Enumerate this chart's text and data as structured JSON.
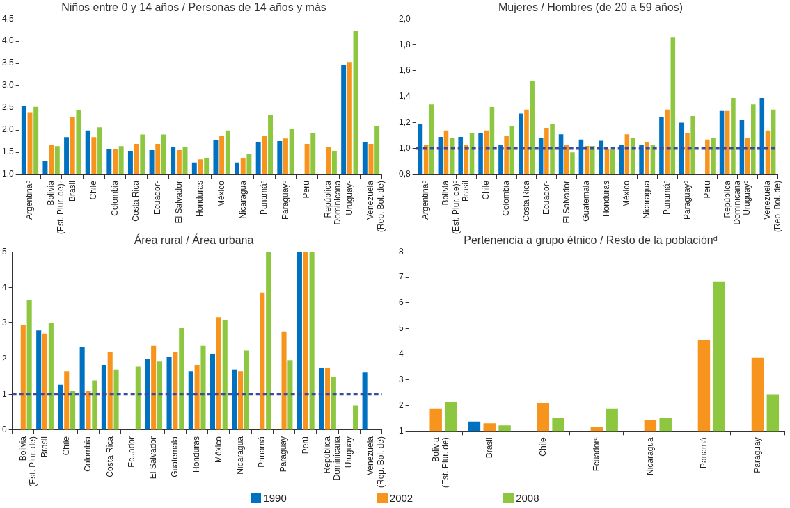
{
  "chart_data": [
    {
      "type": "bar",
      "title": "Niños entre 0 y 14 años / Personas de 14 años y más",
      "categories": [
        "Argentinaᵇ",
        "Bolivia\n(Est. Plur. de)ᶜ",
        "Brasil",
        "Chile",
        "Colombia",
        "Costa Rica",
        "Ecuadorᶜ",
        "El Salvador",
        "Honduras",
        "México",
        "Nicaragua",
        "Panamáᶜ",
        "Paraguayᵇ",
        "Perú",
        "República\nDominicana",
        "Uruguayᶜ",
        "Venezuela\n(Rep. Bol. de)"
      ],
      "series": [
        {
          "name": "1990",
          "color": "#0070c0",
          "values": [
            2.55,
            1.3,
            1.84,
            1.99,
            1.58,
            1.52,
            1.55,
            1.61,
            1.27,
            1.78,
            1.27,
            1.72,
            1.75,
            null,
            null,
            3.47,
            1.72
          ]
        },
        {
          "name": "2002",
          "color": "#f7941d",
          "values": [
            2.4,
            1.67,
            2.3,
            1.84,
            1.58,
            1.69,
            1.69,
            1.55,
            1.34,
            1.87,
            1.36,
            1.87,
            1.81,
            1.69,
            1.61,
            3.53,
            1.69
          ]
        },
        {
          "name": "2008",
          "color": "#8dc63f",
          "values": [
            2.52,
            1.64,
            2.45,
            2.06,
            1.64,
            1.9,
            1.9,
            1.61,
            1.36,
            1.99,
            1.46,
            2.34,
            2.03,
            1.94,
            1.52,
            4.22,
            2.09
          ]
        }
      ],
      "legend": "bottom",
      "ylim": [
        1.0,
        4.5
      ],
      "yticks": [
        {
          "value": 1.0,
          "label": "1,0"
        },
        {
          "value": 1.5,
          "label": "1,5"
        },
        {
          "value": 2.0,
          "label": "2,0"
        },
        {
          "value": 2.5,
          "label": "2,5"
        },
        {
          "value": 3.0,
          "label": "3,0"
        },
        {
          "value": 3.5,
          "label": "3,5"
        },
        {
          "value": 4.0,
          "label": "4,0"
        },
        {
          "value": 4.5,
          "label": "4,5"
        }
      ],
      "grid": false
    },
    {
      "type": "bar",
      "title": "Mujeres / Hombres (de 20 a 59 años)",
      "categories": [
        "Argentinaᵇ",
        "Bolivia\n(Est. Plur. de)ᶜ",
        "Brasil",
        "Chile",
        "Colombia",
        "Costa Rica",
        "Ecuadorᶜ",
        "El Salvador",
        "Guatemala",
        "Honduras",
        "México",
        "Nicaragua",
        "Panamáᶜ",
        "Paraguayᵇ",
        "Perú",
        "República\nDominicana",
        "Uruguayᶜ",
        "Venezuela\n(Rep. Bol. de)"
      ],
      "series": [
        {
          "name": "1990",
          "color": "#0070c0",
          "values": [
            1.19,
            1.09,
            1.09,
            1.12,
            1.03,
            1.27,
            1.08,
            1.11,
            1.07,
            1.06,
            1.03,
            1.03,
            1.24,
            1.2,
            null,
            1.29,
            1.22,
            1.39
          ]
        },
        {
          "name": "2002",
          "color": "#f7941d",
          "values": [
            1.03,
            1.14,
            1.03,
            1.14,
            1.1,
            1.3,
            1.16,
            1.03,
            1.02,
            1.0,
            1.11,
            1.05,
            1.3,
            1.12,
            1.07,
            1.29,
            1.08,
            1.14
          ]
        },
        {
          "name": "2008",
          "color": "#8dc63f",
          "values": [
            1.34,
            1.08,
            1.12,
            1.32,
            1.17,
            1.52,
            1.19,
            0.97,
            1.02,
            0.99,
            1.08,
            1.03,
            1.86,
            1.25,
            1.08,
            1.39,
            1.34,
            1.3
          ]
        }
      ],
      "ylim": [
        0.8,
        2.0
      ],
      "yticks": [
        {
          "value": 0.8,
          "label": "0,8"
        },
        {
          "value": 1.0,
          "label": "1,0"
        },
        {
          "value": 1.2,
          "label": "1,2"
        },
        {
          "value": 1.4,
          "label": "1,4"
        },
        {
          "value": 1.6,
          "label": "1,6"
        },
        {
          "value": 1.8,
          "label": "1,8"
        },
        {
          "value": 2.0,
          "label": "2,0"
        }
      ],
      "ref_lines": [
        {
          "axis": "y",
          "value": 1.0,
          "color": "#3b4ba0",
          "line_style": "dashed"
        }
      ],
      "grid": false
    },
    {
      "type": "bar",
      "title": "Área rural / Área urbana",
      "categories": [
        "Bolivia\n(Est. Plur. de)",
        "Brasil",
        "Chile",
        "Colombia",
        "Costa Rica",
        "Ecuador",
        "El Salvador",
        "Guatemala",
        "Honduras",
        "México",
        "Nicaragua",
        "Panamá",
        "Paraguay",
        "Perú",
        "República\nDominicana",
        "Uruguay",
        "Venezuela\n(Rep. Bol. de)"
      ],
      "series": [
        {
          "name": "1990",
          "color": "#0070c0",
          "values": [
            null,
            2.8,
            1.27,
            2.32,
            1.83,
            null,
            2.0,
            2.05,
            1.65,
            2.14,
            1.7,
            null,
            null,
            5,
            1.75,
            null,
            1.61
          ]
        },
        {
          "name": "2002",
          "color": "#f7941d",
          "values": [
            2.95,
            2.71,
            1.65,
            1.09,
            2.18,
            null,
            2.36,
            2.18,
            1.83,
            3.17,
            1.65,
            3.86,
            2.75,
            5,
            1.75,
            null,
            null
          ]
        },
        {
          "name": "2008",
          "color": "#8dc63f",
          "values": [
            3.65,
            3.0,
            1.09,
            1.39,
            1.7,
            1.78,
            1.92,
            2.86,
            2.36,
            3.08,
            2.23,
            5,
            1.96,
            5,
            1.48,
            0.69,
            null
          ]
        }
      ],
      "ylim": [
        0,
        5
      ],
      "yticks": [
        0,
        1,
        2,
        3,
        4,
        5
      ],
      "ref_lines": [
        {
          "axis": "y",
          "value": 1.0,
          "color": "#3b4ba0",
          "line_style": "dashed"
        }
      ],
      "grid": false
    },
    {
      "type": "bar",
      "title": "Pertenencia a grupo étnico / Resto de la poblaciónᵈ",
      "categories": [
        "Bolivia\n(Est. Plur. de)",
        "Brasil",
        "Chile",
        "Ecuadorᶜ",
        "Nicaragua",
        "Panamá",
        "Paraguay"
      ],
      "series": [
        {
          "name": "1990",
          "color": "#0070c0",
          "values": [
            null,
            1.37,
            null,
            null,
            null,
            null,
            null
          ]
        },
        {
          "name": "2002",
          "color": "#f7941d",
          "values": [
            1.88,
            1.3,
            2.09,
            1.15,
            1.42,
            4.56,
            3.86
          ]
        },
        {
          "name": "2008",
          "color": "#8dc63f",
          "values": [
            2.15,
            1.22,
            1.51,
            1.88,
            1.51,
            6.82,
            2.43
          ]
        }
      ],
      "ylim": [
        1,
        8
      ],
      "yticks": [
        1,
        2,
        3,
        4,
        5,
        6,
        7,
        8
      ],
      "grid": false
    }
  ]
}
